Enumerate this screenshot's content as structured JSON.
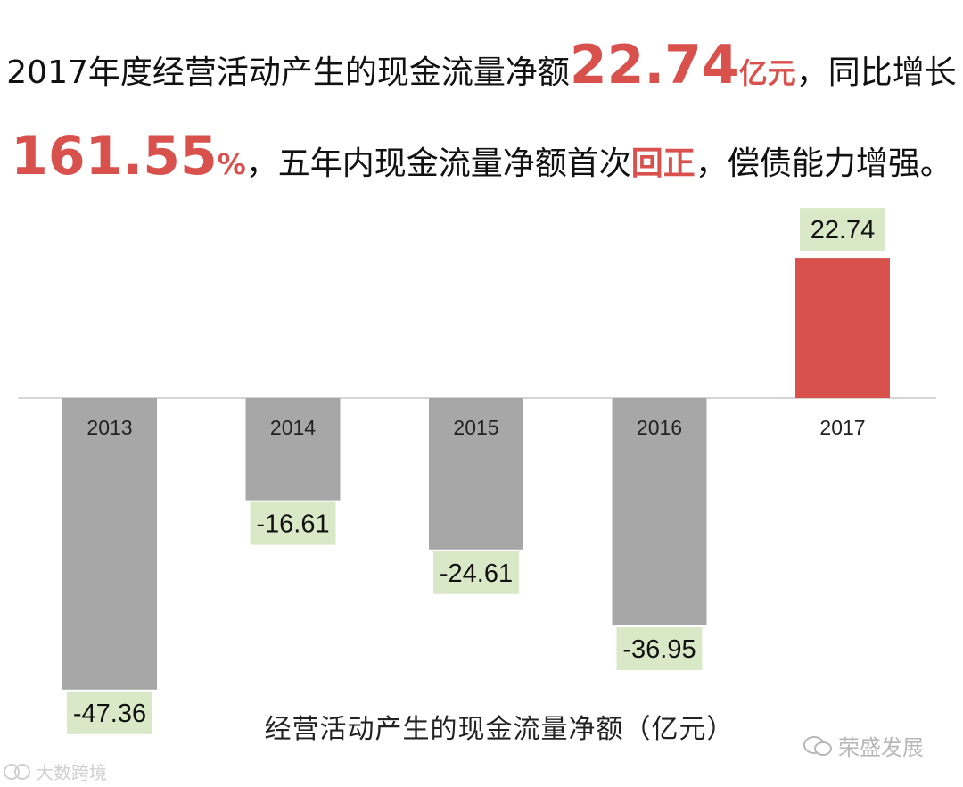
{
  "headline": {
    "line1_prefix": "2017年度经营活动产生的现金流量净额",
    "line1_value": "22.74",
    "line1_unit": "亿元",
    "line1_suffix": "，同比增长",
    "line2_value": "161.55",
    "line2_unit": "%",
    "line2_mid": "，五年内现金流量净额首次",
    "line2_highlight": "回正",
    "line2_suffix": "，偿债能力增强。"
  },
  "chart_data": {
    "type": "bar",
    "title": "经营活动产生的现金流量净额（亿元）",
    "categories": [
      "2013",
      "2014",
      "2015",
      "2016",
      "2017"
    ],
    "values": [
      -47.36,
      -16.61,
      -24.61,
      -36.95,
      22.74
    ],
    "value_labels": [
      "-47.36",
      "-16.61",
      "-24.61",
      "-36.95",
      "22.74"
    ],
    "ylim": [
      -50,
      25
    ],
    "grid": false,
    "legend": "none",
    "colors": {
      "negative": "#a8a7a8",
      "positive": "#d9514d",
      "label_bg": "#d9e9c7"
    }
  },
  "watermarks": {
    "left": "大数跨境",
    "right": "荣盛发展"
  }
}
